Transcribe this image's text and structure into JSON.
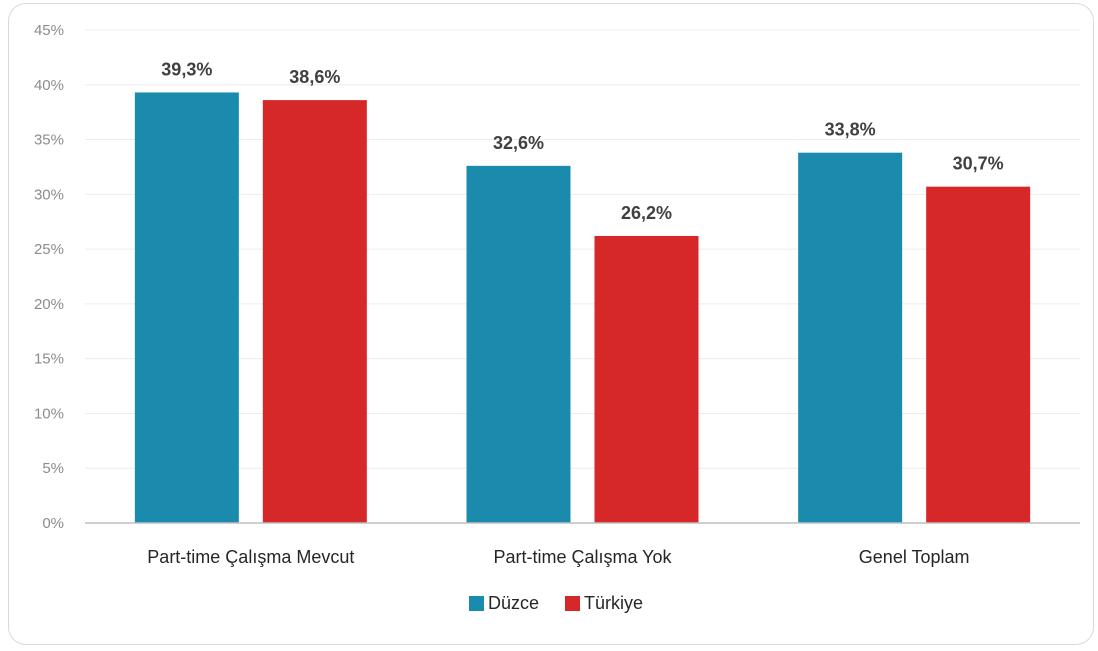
{
  "chart_data": {
    "type": "bar",
    "title": "",
    "xlabel": "",
    "ylabel": "",
    "categories": [
      "Part-time Çalışma Mevcut",
      "Part-time Çalışma Yok",
      "Genel Toplam"
    ],
    "series": [
      {
        "name": "Düzce",
        "color": "#1a8aad",
        "values": [
          39.3,
          32.6,
          33.8
        ],
        "labels": [
          "39,3%",
          "32,6%",
          "33,8%"
        ]
      },
      {
        "name": "Türkiye",
        "color": "#d62729",
        "values": [
          38.6,
          26.2,
          30.7
        ],
        "labels": [
          "38,6%",
          "26,2%",
          "30,7%"
        ]
      }
    ],
    "ylim": [
      0,
      45
    ],
    "yticks": [
      0,
      5,
      10,
      15,
      20,
      25,
      30,
      35,
      40,
      45
    ],
    "ytick_labels": [
      "0%",
      "5%",
      "10%",
      "15%",
      "20%",
      "25%",
      "30%",
      "35%",
      "40%",
      "45%"
    ],
    "grid": true,
    "legend_position": "bottom"
  }
}
